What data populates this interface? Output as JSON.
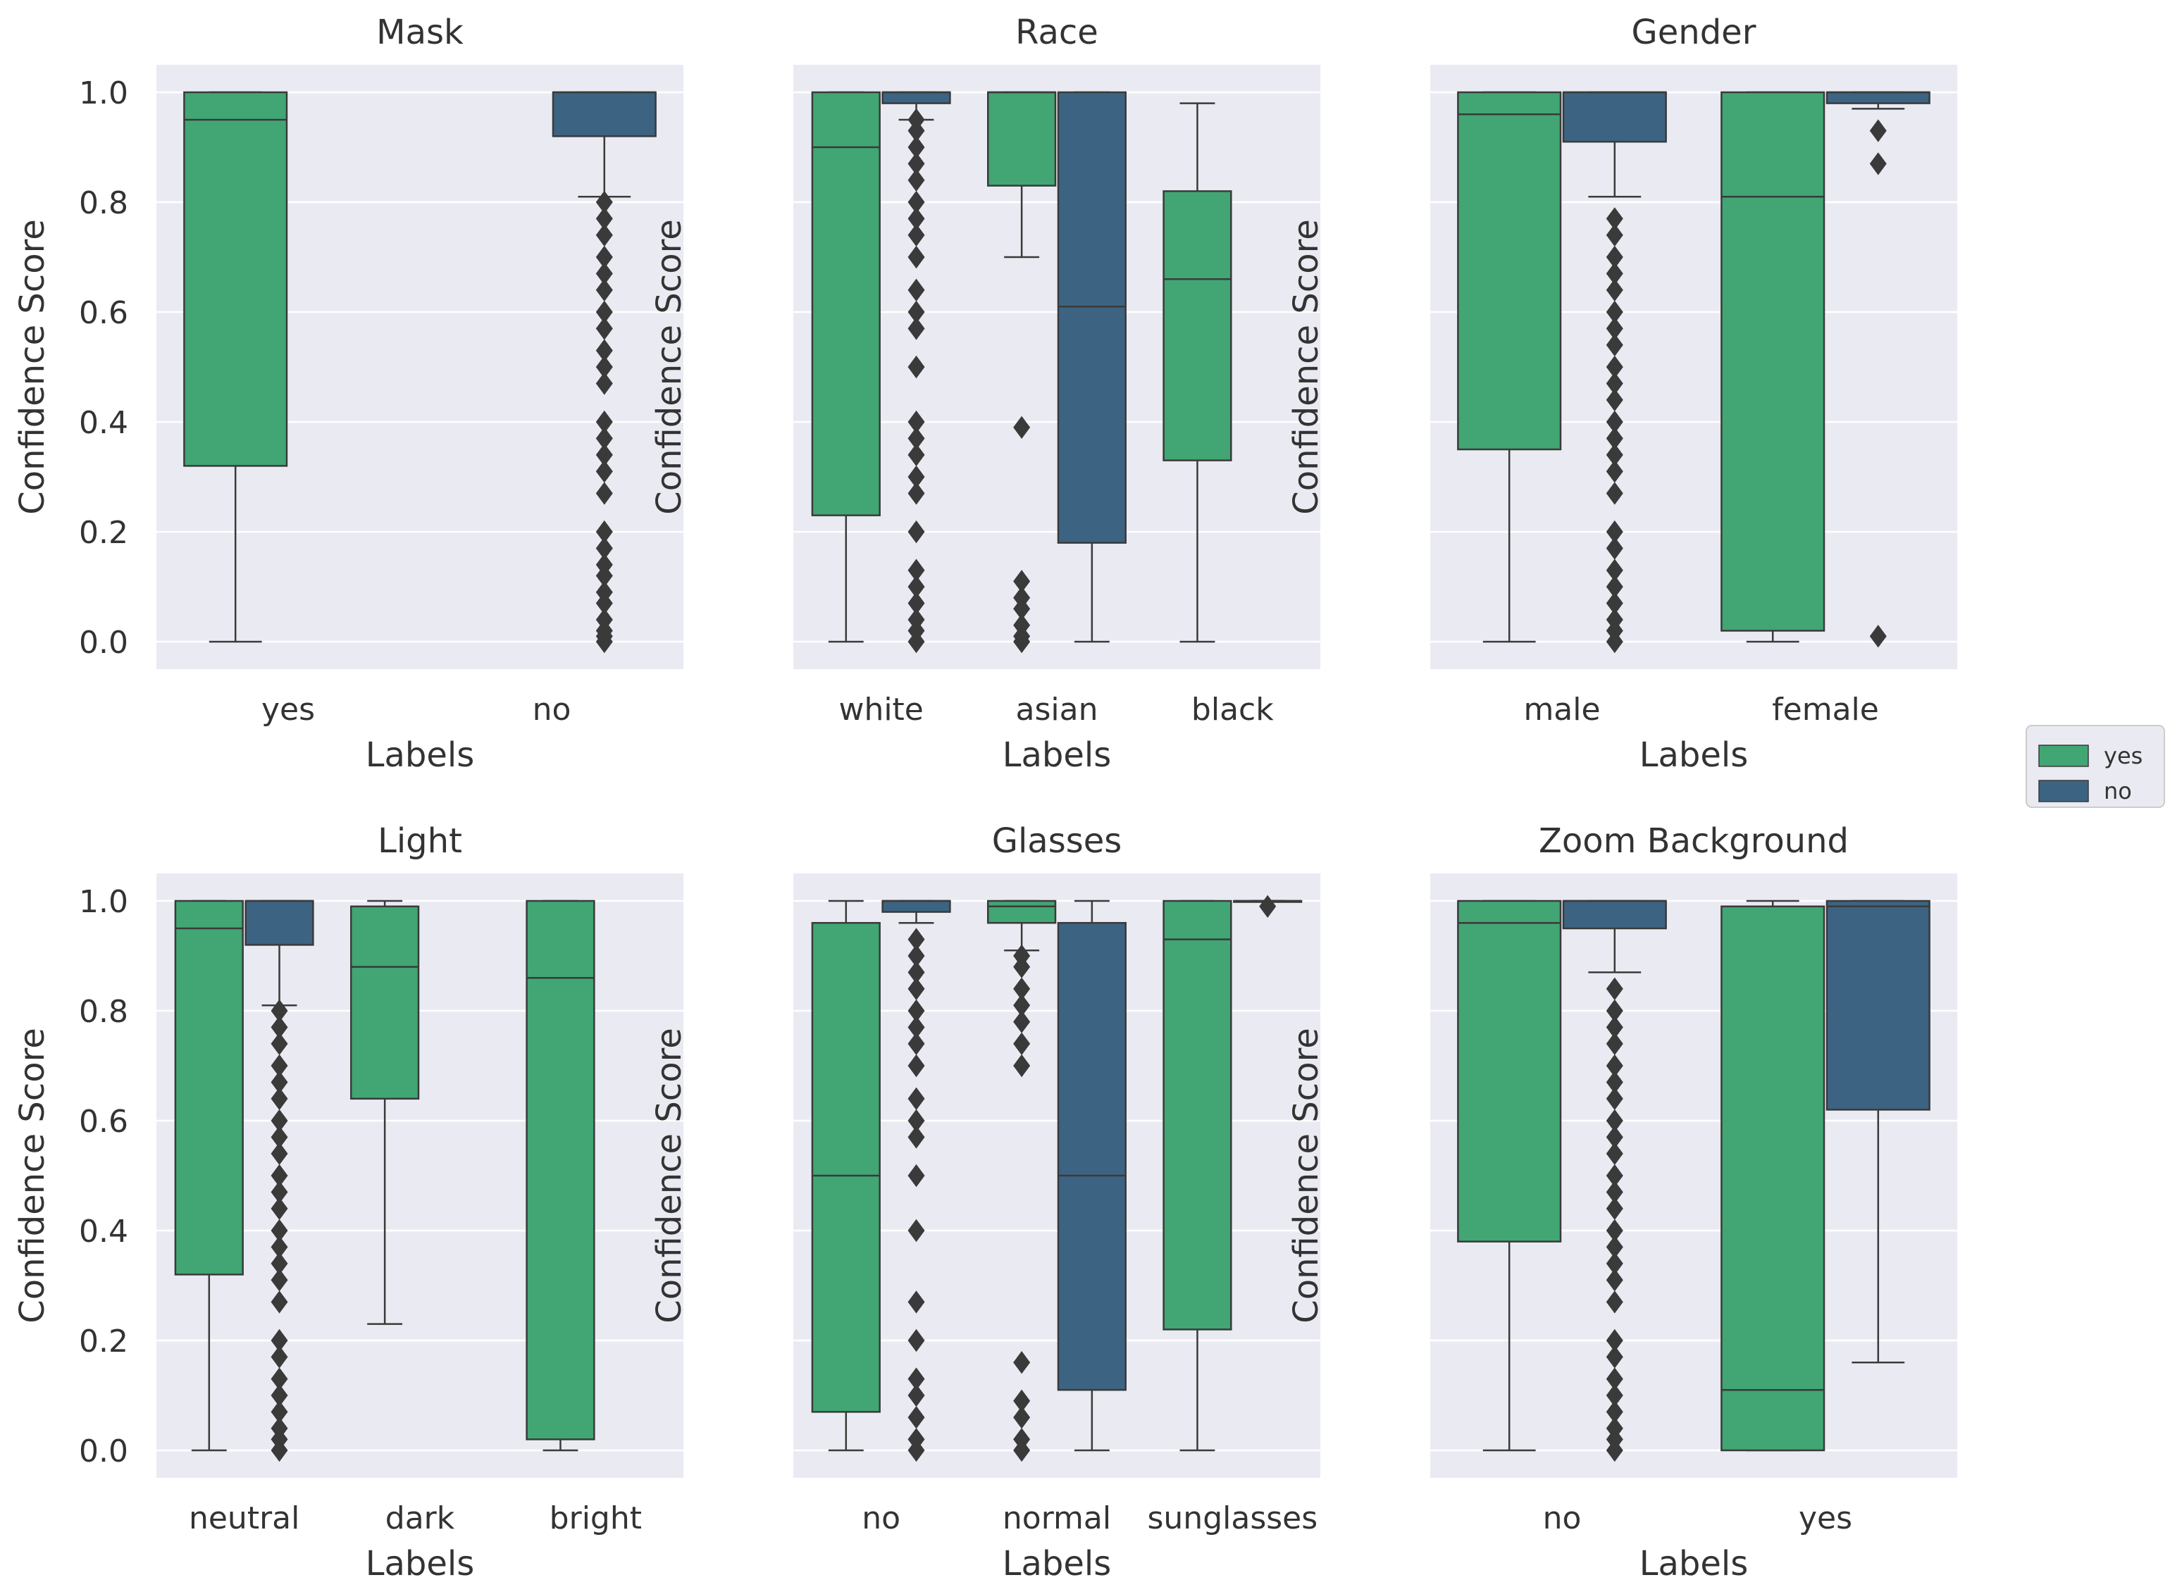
{
  "colors": {
    "yes": "#41a674",
    "no": "#3c6482",
    "plot_bg": "#eaeaf2",
    "line": "#3a3a3a",
    "text": "#333333"
  },
  "legend": {
    "placement": "right-center",
    "entries": [
      {
        "label": "yes",
        "hue": "yes"
      },
      {
        "label": "no",
        "hue": "no"
      }
    ]
  },
  "chart_data": [
    {
      "type": "box",
      "title": "Mask",
      "xlabel": "Labels",
      "ylabel": "Confidence Score",
      "ylim": [
        -0.05,
        1.05
      ],
      "yticks": [
        0.0,
        0.2,
        0.4,
        0.6,
        0.8,
        1.0
      ],
      "ytick_labels": [
        "0.0",
        "0.2",
        "0.4",
        "0.6",
        "0.8",
        "1.0"
      ],
      "categories": [
        "yes",
        "no"
      ],
      "boxes": [
        {
          "category": "yes",
          "hue": "yes",
          "whislo": 0.0,
          "q1": 0.32,
          "med": 0.95,
          "q3": 1.0,
          "whishi": 1.0,
          "fliers": []
        },
        {
          "category": "no",
          "hue": "no",
          "whislo": 0.81,
          "q1": 0.92,
          "med": 1.0,
          "q3": 1.0,
          "whishi": 1.0,
          "fliers": [
            0.0,
            0.01,
            0.02,
            0.04,
            0.07,
            0.09,
            0.12,
            0.14,
            0.17,
            0.2,
            0.27,
            0.31,
            0.34,
            0.37,
            0.4,
            0.47,
            0.5,
            0.53,
            0.57,
            0.6,
            0.64,
            0.67,
            0.7,
            0.74,
            0.77,
            0.8
          ]
        }
      ]
    },
    {
      "type": "box",
      "title": "Race",
      "xlabel": "Labels",
      "ylabel": "Confidence Score",
      "ylim": [
        -0.05,
        1.05
      ],
      "yticks": [
        0.0,
        0.2,
        0.4,
        0.6,
        0.8,
        1.0
      ],
      "ytick_labels": [
        "",
        "",
        "",
        "",
        "",
        ""
      ],
      "categories": [
        "white",
        "asian",
        "black"
      ],
      "boxes": [
        {
          "category": "white",
          "hue": "yes",
          "whislo": 0.0,
          "q1": 0.23,
          "med": 0.9,
          "q3": 1.0,
          "whishi": 1.0,
          "fliers": []
        },
        {
          "category": "white",
          "hue": "no",
          "whislo": 0.95,
          "q1": 0.98,
          "med": 1.0,
          "q3": 1.0,
          "whishi": 1.0,
          "fliers": [
            0.0,
            0.02,
            0.04,
            0.07,
            0.1,
            0.13,
            0.2,
            0.27,
            0.3,
            0.34,
            0.37,
            0.4,
            0.5,
            0.57,
            0.6,
            0.64,
            0.7,
            0.74,
            0.77,
            0.8,
            0.84,
            0.87,
            0.9,
            0.93,
            0.95
          ]
        },
        {
          "category": "asian",
          "hue": "yes",
          "whislo": 0.7,
          "q1": 0.83,
          "med": 1.0,
          "q3": 1.0,
          "whishi": 1.0,
          "fliers": [
            0.0,
            0.01,
            0.03,
            0.06,
            0.08,
            0.11,
            0.39
          ]
        },
        {
          "category": "asian",
          "hue": "no",
          "whislo": 0.0,
          "q1": 0.18,
          "med": 0.61,
          "q3": 1.0,
          "whishi": 1.0,
          "fliers": []
        },
        {
          "category": "black",
          "hue": "yes",
          "whislo": 0.0,
          "q1": 0.33,
          "med": 0.66,
          "q3": 0.82,
          "whishi": 0.98,
          "fliers": []
        }
      ]
    },
    {
      "type": "box",
      "title": "Gender",
      "xlabel": "Labels",
      "ylabel": "Confidence Score",
      "ylim": [
        -0.05,
        1.05
      ],
      "yticks": [
        0.0,
        0.2,
        0.4,
        0.6,
        0.8,
        1.0
      ],
      "ytick_labels": [
        "",
        "",
        "",
        "",
        "",
        ""
      ],
      "categories": [
        "male",
        "female"
      ],
      "boxes": [
        {
          "category": "male",
          "hue": "yes",
          "whislo": 0.0,
          "q1": 0.35,
          "med": 0.96,
          "q3": 1.0,
          "whishi": 1.0,
          "fliers": []
        },
        {
          "category": "male",
          "hue": "no",
          "whislo": 0.81,
          "q1": 0.91,
          "med": 1.0,
          "q3": 1.0,
          "whishi": 1.0,
          "fliers": [
            0.0,
            0.02,
            0.04,
            0.07,
            0.1,
            0.13,
            0.17,
            0.2,
            0.27,
            0.31,
            0.34,
            0.37,
            0.4,
            0.44,
            0.47,
            0.5,
            0.54,
            0.57,
            0.6,
            0.64,
            0.67,
            0.7,
            0.74,
            0.77
          ]
        },
        {
          "category": "female",
          "hue": "yes",
          "whislo": 0.0,
          "q1": 0.02,
          "med": 0.81,
          "q3": 1.0,
          "whishi": 1.0,
          "fliers": []
        },
        {
          "category": "female",
          "hue": "no",
          "whislo": 0.97,
          "q1": 0.98,
          "med": 1.0,
          "q3": 1.0,
          "whishi": 1.0,
          "fliers": [
            0.01,
            0.87,
            0.93
          ]
        }
      ]
    },
    {
      "type": "box",
      "title": "Light",
      "xlabel": "Labels",
      "ylabel": "Confidence Score",
      "ylim": [
        -0.05,
        1.05
      ],
      "yticks": [
        0.0,
        0.2,
        0.4,
        0.6,
        0.8,
        1.0
      ],
      "ytick_labels": [
        "0.0",
        "0.2",
        "0.4",
        "0.6",
        "0.8",
        "1.0"
      ],
      "categories": [
        "neutral",
        "dark",
        "bright"
      ],
      "boxes": [
        {
          "category": "neutral",
          "hue": "yes",
          "whislo": 0.0,
          "q1": 0.32,
          "med": 0.95,
          "q3": 1.0,
          "whishi": 1.0,
          "fliers": []
        },
        {
          "category": "neutral",
          "hue": "no",
          "whislo": 0.81,
          "q1": 0.92,
          "med": 1.0,
          "q3": 1.0,
          "whishi": 1.0,
          "fliers": [
            0.0,
            0.02,
            0.04,
            0.07,
            0.1,
            0.13,
            0.17,
            0.2,
            0.27,
            0.31,
            0.34,
            0.37,
            0.4,
            0.44,
            0.47,
            0.5,
            0.54,
            0.57,
            0.6,
            0.64,
            0.67,
            0.7,
            0.74,
            0.77,
            0.8
          ]
        },
        {
          "category": "dark",
          "hue": "yes",
          "whislo": 0.23,
          "q1": 0.64,
          "med": 0.88,
          "q3": 0.99,
          "whishi": 1.0,
          "fliers": []
        },
        {
          "category": "bright",
          "hue": "yes",
          "whislo": 0.0,
          "q1": 0.02,
          "med": 0.86,
          "q3": 1.0,
          "whishi": 1.0,
          "fliers": []
        }
      ]
    },
    {
      "type": "box",
      "title": "Glasses",
      "xlabel": "Labels",
      "ylabel": "Confidence Score",
      "ylim": [
        -0.05,
        1.05
      ],
      "yticks": [
        0.0,
        0.2,
        0.4,
        0.6,
        0.8,
        1.0
      ],
      "ytick_labels": [
        "",
        "",
        "",
        "",
        "",
        ""
      ],
      "categories": [
        "no",
        "normal",
        "sunglasses"
      ],
      "boxes": [
        {
          "category": "no",
          "hue": "yes",
          "whislo": 0.0,
          "q1": 0.07,
          "med": 0.5,
          "q3": 0.96,
          "whishi": 1.0,
          "fliers": []
        },
        {
          "category": "no",
          "hue": "no",
          "whislo": 0.96,
          "q1": 0.98,
          "med": 1.0,
          "q3": 1.0,
          "whishi": 1.0,
          "fliers": [
            0.0,
            0.02,
            0.06,
            0.1,
            0.13,
            0.2,
            0.27,
            0.4,
            0.5,
            0.57,
            0.6,
            0.64,
            0.7,
            0.74,
            0.77,
            0.8,
            0.84,
            0.87,
            0.9,
            0.93
          ]
        },
        {
          "category": "normal",
          "hue": "yes",
          "whislo": 0.91,
          "q1": 0.96,
          "med": 0.99,
          "q3": 1.0,
          "whishi": 1.0,
          "fliers": [
            0.0,
            0.02,
            0.06,
            0.09,
            0.16,
            0.7,
            0.74,
            0.78,
            0.81,
            0.84,
            0.88,
            0.9
          ]
        },
        {
          "category": "normal",
          "hue": "no",
          "whislo": 0.0,
          "q1": 0.11,
          "med": 0.5,
          "q3": 0.96,
          "whishi": 1.0,
          "fliers": []
        },
        {
          "category": "sunglasses",
          "hue": "yes",
          "whislo": 0.0,
          "q1": 0.22,
          "med": 0.93,
          "q3": 1.0,
          "whishi": 1.0,
          "fliers": []
        },
        {
          "category": "sunglasses",
          "hue": "no",
          "whislo": 1.0,
          "q1": 1.0,
          "med": 1.0,
          "q3": 1.0,
          "whishi": 1.0,
          "fliers": [
            0.99
          ]
        }
      ]
    },
    {
      "type": "box",
      "title": "Zoom Background",
      "xlabel": "Labels",
      "ylabel": "Confidence Score",
      "ylim": [
        -0.05,
        1.05
      ],
      "yticks": [
        0.0,
        0.2,
        0.4,
        0.6,
        0.8,
        1.0
      ],
      "ytick_labels": [
        "",
        "",
        "",
        "",
        "",
        ""
      ],
      "categories": [
        "no",
        "yes"
      ],
      "boxes": [
        {
          "category": "no",
          "hue": "yes",
          "whislo": 0.0,
          "q1": 0.38,
          "med": 0.96,
          "q3": 1.0,
          "whishi": 1.0,
          "fliers": []
        },
        {
          "category": "no",
          "hue": "no",
          "whislo": 0.87,
          "q1": 0.95,
          "med": 1.0,
          "q3": 1.0,
          "whishi": 1.0,
          "fliers": [
            0.0,
            0.02,
            0.04,
            0.07,
            0.1,
            0.13,
            0.17,
            0.2,
            0.27,
            0.31,
            0.34,
            0.37,
            0.4,
            0.44,
            0.47,
            0.5,
            0.54,
            0.57,
            0.6,
            0.64,
            0.67,
            0.7,
            0.74,
            0.77,
            0.8,
            0.84
          ]
        },
        {
          "category": "yes",
          "hue": "yes",
          "whislo": 0.0,
          "q1": 0.0,
          "med": 0.11,
          "q3": 0.99,
          "whishi": 1.0,
          "fliers": []
        },
        {
          "category": "yes",
          "hue": "no",
          "whislo": 0.16,
          "q1": 0.62,
          "med": 0.99,
          "q3": 1.0,
          "whishi": 1.0,
          "fliers": []
        }
      ]
    }
  ]
}
